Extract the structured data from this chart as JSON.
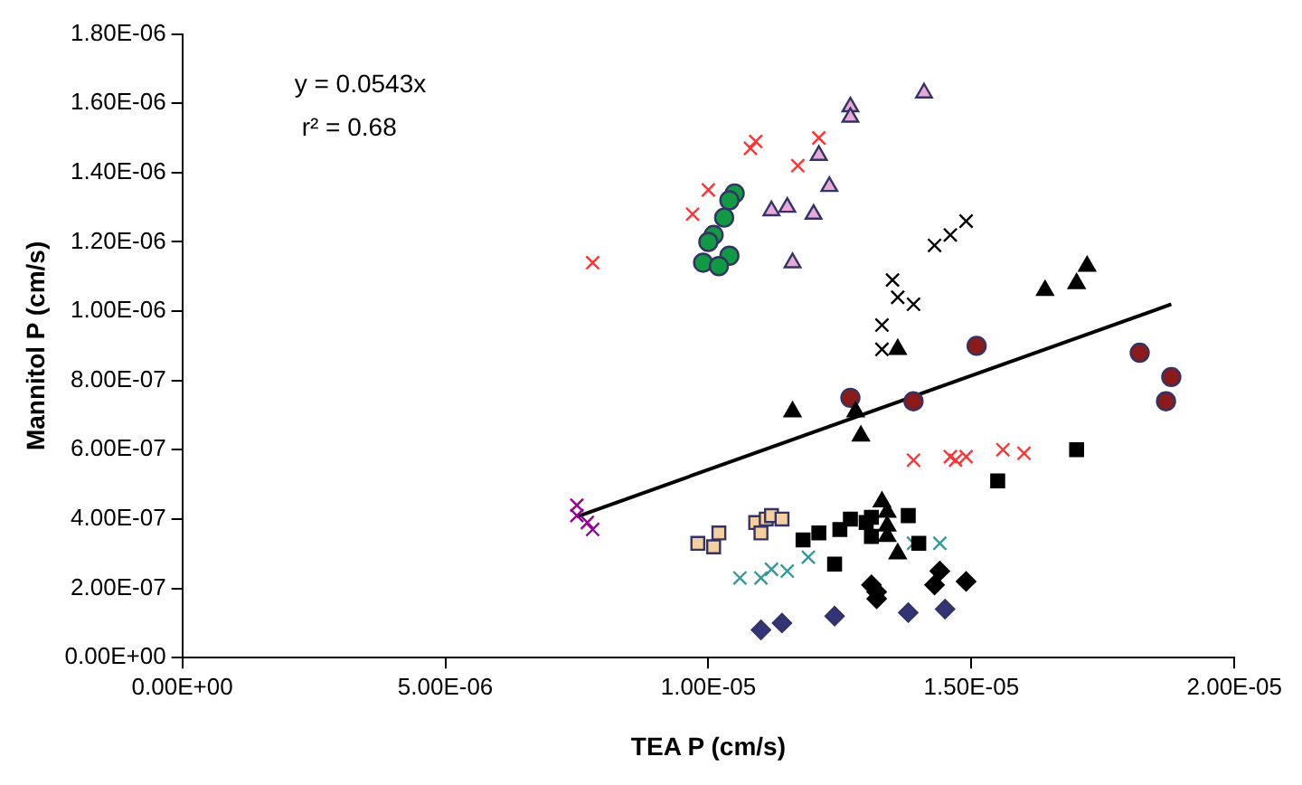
{
  "chart_data": {
    "type": "scatter",
    "xlabel": "TEA P (cm/s)",
    "ylabel": "Mannitol P (cm/s)",
    "annotations": [
      "y = 0.0543x",
      "r² = 0.68"
    ],
    "xlim": [
      0,
      2e-05
    ],
    "xticks": [
      {
        "value": 0,
        "label": "0.00E+00"
      },
      {
        "value": 5e-06,
        "label": "5.00E-06"
      },
      {
        "value": 1e-05,
        "label": "1.00E-05"
      },
      {
        "value": 1.5e-05,
        "label": "1.50E-05"
      },
      {
        "value": 2e-05,
        "label": "2.00E-05"
      }
    ],
    "ylim": [
      0,
      1.8e-06
    ],
    "yticks": [
      {
        "value": 0,
        "label": "0.00E+00"
      },
      {
        "value": 2e-07,
        "label": "2.00E-07"
      },
      {
        "value": 4e-07,
        "label": "4.00E-07"
      },
      {
        "value": 6e-07,
        "label": "6.00E-07"
      },
      {
        "value": 8e-07,
        "label": "8.00E-07"
      },
      {
        "value": 1e-06,
        "label": "1.00E-06"
      },
      {
        "value": 1.2e-06,
        "label": "1.20E-06"
      },
      {
        "value": 1.4e-06,
        "label": "1.40E-06"
      },
      {
        "value": 1.6e-06,
        "label": "1.60E-06"
      },
      {
        "value": 1.8e-06,
        "label": "1.80E-06"
      }
    ],
    "grid": false,
    "legend": false,
    "series": [
      {
        "color": "#ff3333",
        "marker": "cross",
        "x": [
          7.8e-06,
          9.7e-06,
          1e-05,
          1.08e-05,
          1.09e-05,
          1.17e-05,
          1.21e-05
        ],
        "values": [
          1.14e-06,
          1.28e-06,
          1.35e-06,
          1.47e-06,
          1.49e-06,
          1.42e-06,
          1.5e-06
        ]
      },
      {
        "color": "#119944",
        "marker": "circle",
        "x": [
          1.05e-05,
          1.04e-05,
          1.03e-05,
          1.01e-05,
          1e-05,
          1.04e-05,
          9.9e-06,
          1.02e-05
        ],
        "values": [
          1.34e-06,
          1.32e-06,
          1.27e-06,
          1.22e-06,
          1.2e-06,
          1.16e-06,
          1.14e-06,
          1.13e-06
        ]
      },
      {
        "color": "#e8a8d8",
        "marker": "triangle",
        "x": [
          1.12e-05,
          1.15e-05,
          1.2e-05,
          1.16e-05,
          1.21e-05,
          1.23e-05,
          1.27e-05,
          1.27e-05,
          1.41e-05
        ],
        "values": [
          1.29e-06,
          1.3e-06,
          1.28e-06,
          1.14e-06,
          1.45e-06,
          1.36e-06,
          1.59e-06,
          1.56e-06,
          1.63e-06
        ]
      },
      {
        "color": "#000000",
        "marker": "cross",
        "x": [
          1.49e-05,
          1.46e-05,
          1.43e-05,
          1.35e-05,
          1.36e-05,
          1.39e-05,
          1.33e-05,
          1.33e-05
        ],
        "values": [
          1.26e-06,
          1.22e-06,
          1.19e-06,
          1.09e-06,
          1.04e-06,
          1.02e-06,
          9.6e-07,
          8.9e-07
        ]
      },
      {
        "color": "#000000",
        "marker": "triangle",
        "x": [
          1.72e-05,
          1.7e-05,
          1.64e-05,
          1.36e-05,
          1.16e-05,
          1.28e-05,
          1.29e-05
        ],
        "values": [
          1.13e-06,
          1.08e-06,
          1.06e-06,
          8.9e-07,
          7.1e-07,
          7.1e-07,
          6.4e-07
        ]
      },
      {
        "color": "#8b1a1a",
        "marker": "circle",
        "x": [
          1.51e-05,
          1.27e-05,
          1.39e-05,
          1.82e-05,
          1.88e-05,
          1.87e-05
        ],
        "values": [
          9e-07,
          7.5e-07,
          7.4e-07,
          8.8e-07,
          8.1e-07,
          7.4e-07
        ]
      },
      {
        "color": "#ff3333",
        "marker": "cross",
        "x": [
          1.39e-05,
          1.46e-05,
          1.47e-05,
          1.49e-05,
          1.56e-05,
          1.6e-05
        ],
        "values": [
          5.7e-07,
          5.8e-07,
          5.7e-07,
          5.8e-07,
          6e-07,
          5.9e-07
        ]
      },
      {
        "color": "#000000",
        "marker": "square",
        "x": [
          1.7e-05,
          1.55e-05,
          1.38e-05,
          1.31e-05,
          1.4e-05,
          1.24e-05
        ],
        "values": [
          6e-07,
          5.1e-07,
          4.1e-07,
          3.5e-07,
          3.3e-07,
          2.7e-07
        ]
      },
      {
        "color": "#000000",
        "marker": "triangle",
        "x": [
          1.33e-05,
          1.34e-05,
          1.34e-05,
          1.34e-05,
          1.36e-05
        ],
        "values": [
          4.5e-07,
          4.2e-07,
          3.8e-07,
          3.5e-07,
          3e-07
        ]
      },
      {
        "color": "#000000",
        "marker": "square",
        "x": [
          1.18e-05,
          1.21e-05,
          1.25e-05,
          1.27e-05,
          1.3e-05,
          1.31e-05
        ],
        "values": [
          3.4e-07,
          3.6e-07,
          3.7e-07,
          4e-07,
          3.9e-07,
          4.05e-07
        ]
      },
      {
        "color": "#339999",
        "marker": "cross",
        "x": [
          1.06e-05,
          1.1e-05,
          1.12e-05,
          1.15e-05,
          1.19e-05,
          1.39e-05,
          1.44e-05
        ],
        "values": [
          2.3e-07,
          2.3e-07,
          2.55e-07,
          2.5e-07,
          2.9e-07,
          3.3e-07,
          3.3e-07
        ]
      },
      {
        "color": "#f5cfa0",
        "marker": "square",
        "x": [
          9.8e-06,
          1.01e-05,
          1.02e-05,
          1.09e-05,
          1.11e-05,
          1.12e-05,
          1.14e-05,
          1.1e-05
        ],
        "values": [
          3.3e-07,
          3.2e-07,
          3.6e-07,
          3.9e-07,
          4e-07,
          4.1e-07,
          4e-07,
          3.6e-07
        ]
      },
      {
        "color": "#000000",
        "marker": "diamond",
        "x": [
          1.31e-05,
          1.32e-05,
          1.32e-05,
          1.44e-05,
          1.43e-05,
          1.49e-05
        ],
        "values": [
          2.1e-07,
          1.9e-07,
          1.7e-07,
          2.5e-07,
          2.1e-07,
          2.2e-07
        ]
      },
      {
        "color": "#333377",
        "marker": "diamond",
        "x": [
          1.1e-05,
          1.14e-05,
          1.24e-05,
          1.38e-05,
          1.45e-05
        ],
        "values": [
          8e-08,
          1e-07,
          1.2e-07,
          1.3e-07,
          1.4e-07
        ]
      },
      {
        "color": "#990099",
        "marker": "cross",
        "x": [
          7.5e-06,
          7.5e-06,
          7.7e-06,
          7.8e-06
        ],
        "values": [
          4.4e-07,
          4.1e-07,
          3.9e-07,
          3.7e-07
        ]
      },
      {
        "type": "line",
        "color": "#000000",
        "marker": "none",
        "x": [
          7.5e-06,
          1.88e-05
        ],
        "values": [
          4.07e-07,
          1.02e-06
        ]
      }
    ]
  }
}
